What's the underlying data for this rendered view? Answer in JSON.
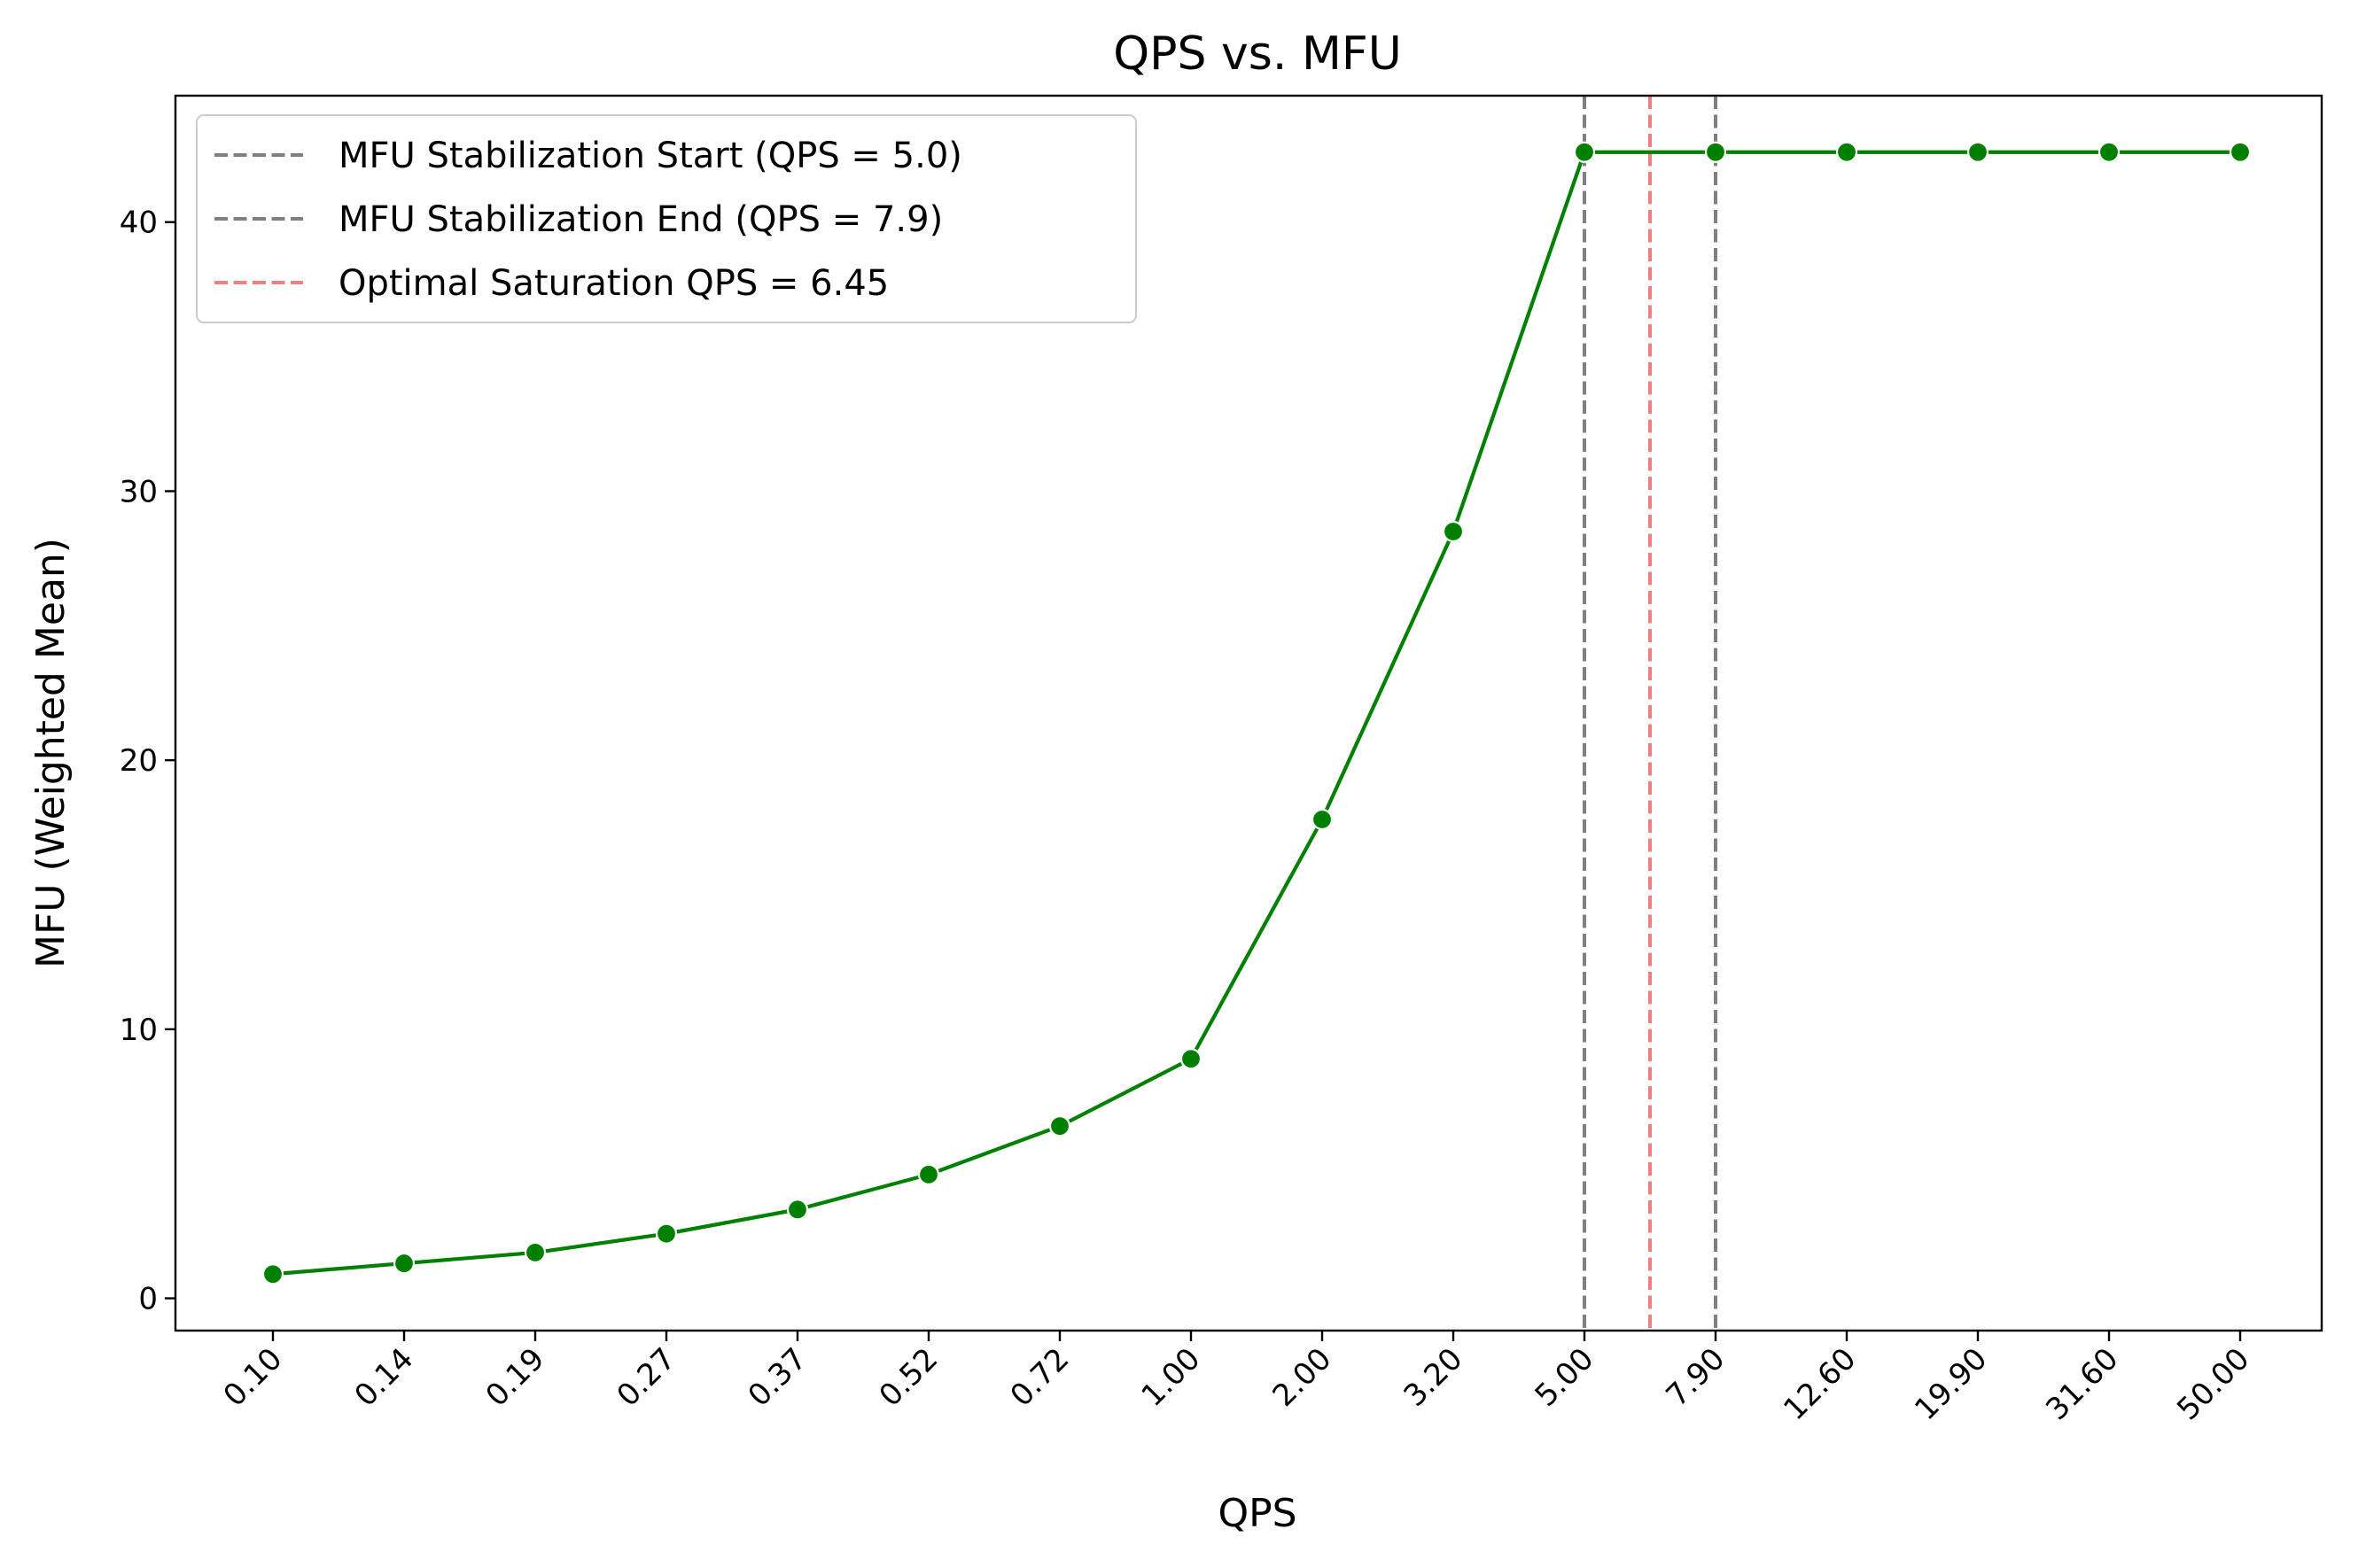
{
  "chart_data": {
    "type": "line",
    "title": "QPS vs. MFU",
    "xlabel": "QPS",
    "ylabel": "MFU (Weighted Mean)",
    "x_categories": [
      "0.10",
      "0.14",
      "0.19",
      "0.27",
      "0.37",
      "0.52",
      "0.72",
      "1.00",
      "2.00",
      "3.20",
      "5.00",
      "7.90",
      "12.60",
      "19.90",
      "31.60",
      "50.00"
    ],
    "series": [
      {
        "values": [
          0.9,
          1.3,
          1.7,
          2.4,
          3.3,
          4.6,
          6.4,
          8.9,
          17.8,
          28.5,
          42.6,
          42.6,
          42.6,
          42.6,
          42.6,
          42.6
        ],
        "color": "#008000"
      }
    ],
    "ylim": [
      -1.2,
      44.7
    ],
    "yticks": [
      0,
      10,
      20,
      30,
      40
    ],
    "grid": false,
    "legend_position": "upper-left",
    "reference_lines": [
      {
        "label": "MFU Stabilization Start (QPS = 5.0)",
        "x_index": 10,
        "color": "#808080"
      },
      {
        "label": "MFU Stabilization End (QPS = 7.9)",
        "x_index": 11,
        "color": "#808080"
      },
      {
        "label": "Optimal Saturation QPS = 6.45",
        "x_index": 10.5,
        "color": "#f08080"
      }
    ]
  }
}
